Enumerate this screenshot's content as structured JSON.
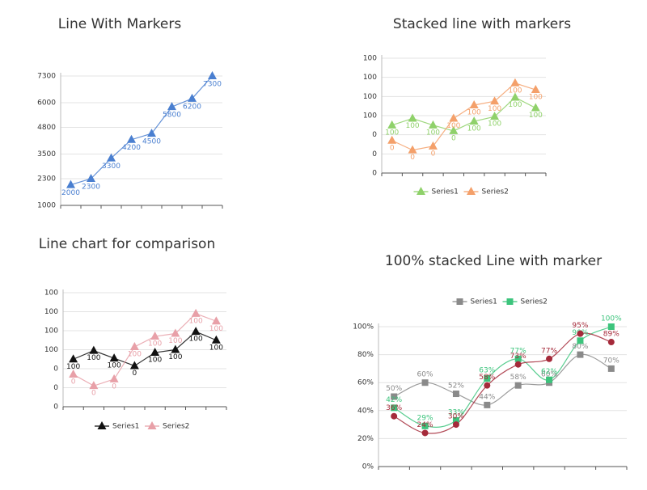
{
  "chart_data": [
    {
      "type": "line",
      "title": "Line With Markers",
      "categories": [
        null,
        null,
        null,
        null,
        null,
        null,
        null,
        null
      ],
      "series": [
        {
          "color": "#4a7fd0",
          "marker": "triangle",
          "values": [
            2000,
            2300,
            3300,
            4200,
            4500,
            5800,
            6200,
            7300
          ]
        }
      ],
      "ylim": [
        1000,
        7300
      ],
      "yticks": [
        1000,
        2300,
        3500,
        4800,
        6000,
        7300
      ],
      "grid": true
    },
    {
      "type": "line",
      "title": "Stacked line with markers",
      "categories": [
        null,
        null,
        null,
        null,
        null,
        null,
        null,
        null
      ],
      "series": [
        {
          "name": "Series1",
          "color": "#8fd16a",
          "marker": "triangle",
          "values": [
            50,
            57,
            50,
            44,
            54,
            59,
            79,
            68
          ],
          "value_labels": [
            "100",
            "100",
            "100",
            "0",
            "100",
            "100",
            "100",
            "100"
          ]
        },
        {
          "name": "Series2",
          "color": "#f4a06a",
          "marker": "triangle",
          "values": [
            34,
            24,
            28,
            57,
            71,
            75,
            94,
            87
          ],
          "value_labels": [
            "0",
            "0",
            "0",
            "100",
            "100",
            "100",
            "100",
            "100"
          ]
        }
      ],
      "ylim": [
        0,
        120
      ],
      "yticks": [
        0,
        {
          "value": 20,
          "label": "0"
        },
        {
          "value": 40,
          "label": "0"
        },
        {
          "value": 60,
          "label": "100"
        },
        {
          "value": 80,
          "label": "100"
        },
        100,
        {
          "value": 120,
          "label": "100"
        }
      ],
      "grid": true,
      "legend": "bottom"
    },
    {
      "type": "line",
      "title": "Line chart for comparison",
      "categories": [
        null,
        null,
        null,
        null,
        null,
        null,
        null,
        null
      ],
      "series": [
        {
          "name": "Series1",
          "color": "#111111",
          "marker": "triangle",
          "values": [
            50,
            59,
            51,
            43,
            57,
            60,
            79,
            70
          ],
          "value_labels": [
            "100",
            "100",
            "100",
            "0",
            "100",
            "100",
            "100",
            "100"
          ]
        },
        {
          "name": "Series2",
          "color": "#e8a0a8",
          "marker": "triangle",
          "values": [
            34,
            22,
            29,
            63,
            74,
            77,
            98,
            90
          ],
          "value_labels": [
            "0",
            "0",
            "0",
            "100",
            "100",
            "100",
            "100",
            "100"
          ]
        }
      ],
      "ylim": [
        0,
        120
      ],
      "yticks": [
        0,
        {
          "value": 20,
          "label": "0"
        },
        {
          "value": 40,
          "label": "0"
        },
        {
          "value": 60,
          "label": "100"
        },
        {
          "value": 80,
          "label": "100"
        },
        100,
        {
          "value": 120,
          "label": "100"
        }
      ],
      "grid": true,
      "legend": "bottom"
    },
    {
      "type": "line",
      "title": "100% stacked Line with marker",
      "smooth": true,
      "categories": [
        null,
        null,
        null,
        null,
        null,
        null,
        null,
        null
      ],
      "series": [
        {
          "name": "Series1",
          "color": "#8a8a8a",
          "marker": "square",
          "values": [
            50,
            60,
            52,
            44,
            58,
            60,
            80,
            70
          ],
          "value_labels": [
            "50%",
            "60%",
            "52%",
            "44%",
            "58%",
            "60%",
            "80%",
            "70%"
          ]
        },
        {
          "name": "Series2",
          "color": "#3cc47c",
          "marker": "square",
          "values": [
            42,
            29,
            33,
            63,
            77,
            62,
            90,
            100
          ],
          "value_labels": [
            "42%",
            "29%",
            "33%",
            "63%",
            "77%",
            "62%",
            "90%",
            "100%"
          ]
        },
        {
          "color": "#a52a3a",
          "marker": "circle",
          "values": [
            36,
            24,
            30,
            58,
            73,
            77,
            95,
            89
          ],
          "value_labels": [
            "36%",
            "24%",
            "30%",
            "58%",
            "73%",
            "77%",
            "95%",
            "89%"
          ]
        }
      ],
      "ylim": [
        0,
        100
      ],
      "yticks": [
        {
          "value": 0,
          "label": "0%"
        },
        {
          "value": 20,
          "label": "20%"
        },
        {
          "value": 40,
          "label": "40%"
        },
        {
          "value": 60,
          "label": "60%"
        },
        {
          "value": 80,
          "label": "80%"
        },
        {
          "value": 100,
          "label": "100%"
        }
      ],
      "grid": true,
      "legend": "top"
    }
  ]
}
